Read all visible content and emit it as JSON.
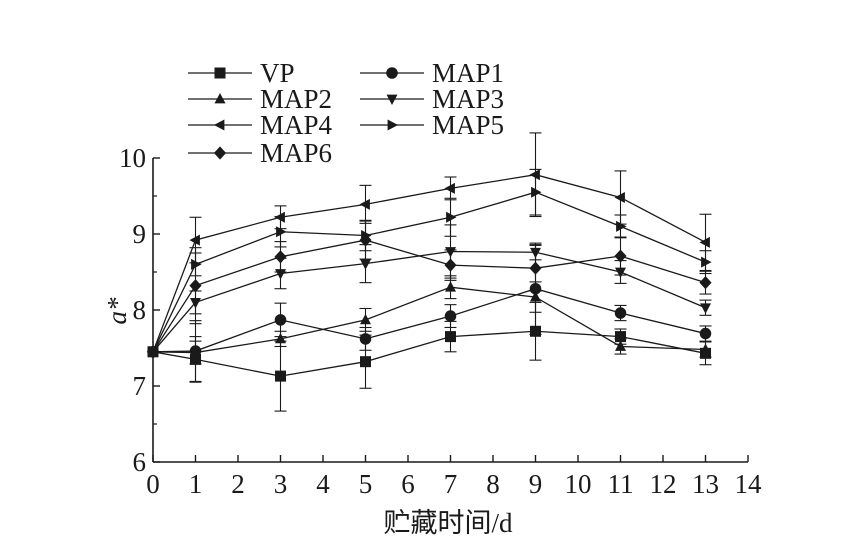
{
  "chart_data": {
    "type": "line",
    "title": "",
    "xlabel": "贮藏时间/d",
    "ylabel": "a*",
    "xlim": [
      0,
      14
    ],
    "ylim": [
      6,
      10
    ],
    "x_ticks": [
      "0",
      "1",
      "2",
      "3",
      "4",
      "5",
      "6",
      "7",
      "8",
      "9",
      "10",
      "11",
      "12",
      "13",
      "14"
    ],
    "y_ticks": [
      "6",
      "7",
      "8",
      "9",
      "10"
    ],
    "grid": false,
    "legend_position": "top-left",
    "x": [
      0,
      1,
      3,
      5,
      7,
      9,
      11,
      13
    ],
    "series": [
      {
        "name": "VP",
        "marker": "square",
        "values": [
          7.45,
          7.35,
          7.13,
          7.32,
          7.65,
          7.72,
          7.65,
          7.43
        ],
        "errors": [
          0,
          0.3,
          0.46,
          0.35,
          0.2,
          0.38,
          0.1,
          0.15
        ]
      },
      {
        "name": "MAP1",
        "marker": "circle",
        "values": [
          7.45,
          7.46,
          7.87,
          7.62,
          7.92,
          8.28,
          7.96,
          7.69
        ],
        "errors": [
          0,
          0.4,
          0.22,
          0.15,
          0.15,
          0.6,
          0.1,
          0.1
        ]
      },
      {
        "name": "MAP2",
        "marker": "triangle-up",
        "values": [
          7.45,
          7.44,
          7.62,
          7.87,
          8.3,
          8.17,
          7.52,
          7.48
        ],
        "errors": [
          0,
          0.15,
          0.1,
          0.15,
          0.15,
          0.2,
          0.1,
          0.1
        ]
      },
      {
        "name": "MAP3",
        "marker": "triangle-down",
        "values": [
          7.45,
          8.1,
          8.48,
          8.61,
          8.77,
          8.76,
          8.5,
          8.03
        ],
        "errors": [
          0,
          0.15,
          0.2,
          0.25,
          0.35,
          0.1,
          0.15,
          0.1
        ]
      },
      {
        "name": "MAP4",
        "marker": "triangle-left",
        "values": [
          7.45,
          8.92,
          9.22,
          9.39,
          9.6,
          9.78,
          9.48,
          8.89
        ],
        "errors": [
          0,
          0.3,
          0.15,
          0.25,
          0.15,
          0.55,
          0.35,
          0.37
        ]
      },
      {
        "name": "MAP5",
        "marker": "triangle-right",
        "values": [
          7.45,
          8.6,
          9.03,
          8.98,
          9.22,
          9.55,
          9.1,
          8.63
        ],
        "errors": [
          0,
          0.15,
          0.2,
          0.2,
          0.25,
          0.3,
          0.15,
          0.15
        ]
      },
      {
        "name": "MAP6",
        "marker": "diamond",
        "values": [
          7.45,
          8.32,
          8.7,
          8.92,
          8.59,
          8.55,
          8.71,
          8.36
        ],
        "errors": [
          0,
          0.5,
          0.2,
          0.25,
          0.2,
          0.3,
          0.25,
          0.15
        ]
      }
    ]
  }
}
